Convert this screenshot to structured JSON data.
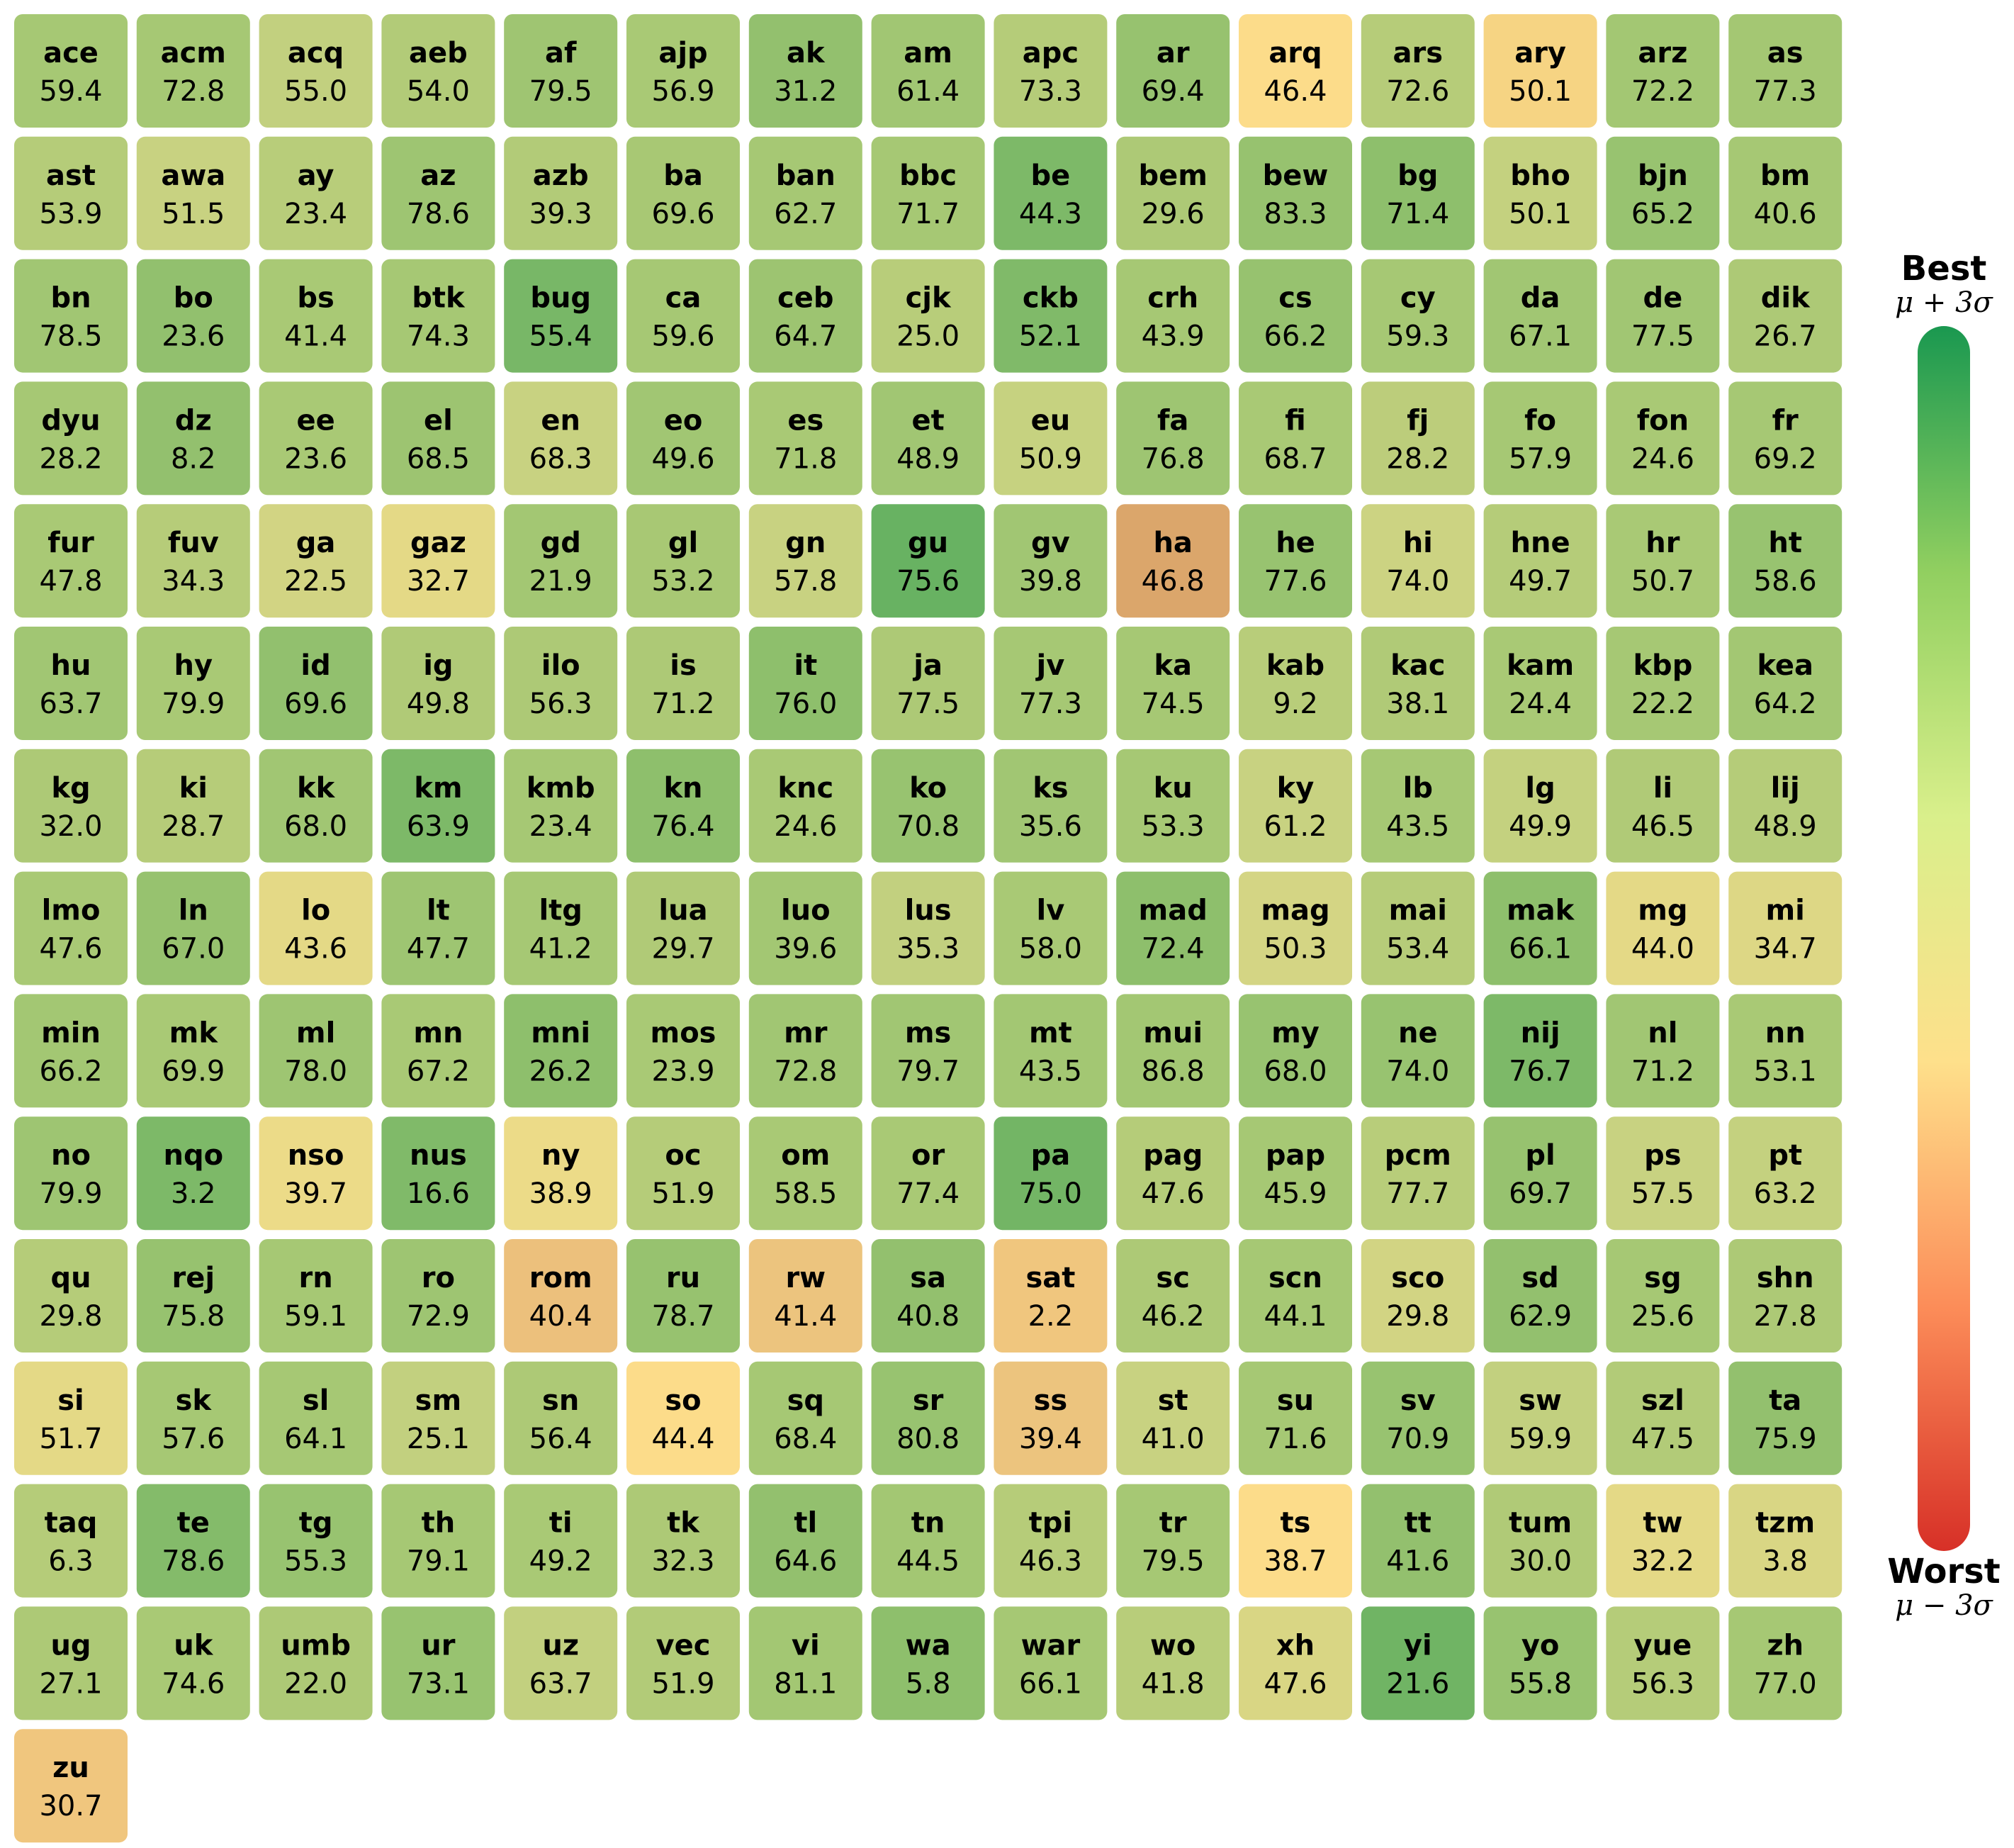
{
  "chart_data": {
    "type": "heatmap",
    "legend": {
      "top_label": "Best",
      "top_sub": "μ + 3σ",
      "bottom_label": "Worst",
      "bottom_sub": "μ − 3σ",
      "placement": "right",
      "gradient_colors": [
        "#1a9850",
        "#91cf60",
        "#d9ef8b",
        "#fee08b",
        "#fc8d59",
        "#d73027"
      ]
    },
    "columns": 15,
    "cells": [
      {
        "code": "ace",
        "value": 59.4,
        "color": "#a6c874"
      },
      {
        "code": "acm",
        "value": 72.8,
        "color": "#a6c874"
      },
      {
        "code": "acq",
        "value": 55.0,
        "color": "#c2d07f"
      },
      {
        "code": "aeb",
        "value": 54.0,
        "color": "#b2cb78"
      },
      {
        "code": "af",
        "value": 79.5,
        "color": "#9fc572"
      },
      {
        "code": "ajp",
        "value": 56.9,
        "color": "#a9c975"
      },
      {
        "code": "ak",
        "value": 31.2,
        "color": "#93c06e"
      },
      {
        "code": "am",
        "value": 61.4,
        "color": "#a1c673"
      },
      {
        "code": "apc",
        "value": 73.3,
        "color": "#b5cc79"
      },
      {
        "code": "ar",
        "value": 69.4,
        "color": "#97c26f"
      },
      {
        "code": "arq",
        "value": 46.4,
        "color": "#fcdc8a"
      },
      {
        "code": "ars",
        "value": 72.6,
        "color": "#b6cc79"
      },
      {
        "code": "ary",
        "value": 50.1,
        "color": "#f6d483"
      },
      {
        "code": "arz",
        "value": 72.2,
        "color": "#a3c773"
      },
      {
        "code": "as",
        "value": 77.3,
        "color": "#a4c773"
      },
      {
        "code": "ast",
        "value": 53.9,
        "color": "#b5cc79"
      },
      {
        "code": "awa",
        "value": 51.5,
        "color": "#c8d281"
      },
      {
        "code": "ay",
        "value": 23.4,
        "color": "#b8cd7a"
      },
      {
        "code": "az",
        "value": 78.6,
        "color": "#9ec572"
      },
      {
        "code": "azb",
        "value": 39.3,
        "color": "#b2cb78"
      },
      {
        "code": "ba",
        "value": 69.6,
        "color": "#a8c874"
      },
      {
        "code": "ban",
        "value": 62.7,
        "color": "#a6c874"
      },
      {
        "code": "bbc",
        "value": 71.7,
        "color": "#a6c874"
      },
      {
        "code": "be",
        "value": 44.3,
        "color": "#7db968"
      },
      {
        "code": "bem",
        "value": 29.6,
        "color": "#adc976"
      },
      {
        "code": "bew",
        "value": 83.3,
        "color": "#97c26f"
      },
      {
        "code": "bg",
        "value": 71.4,
        "color": "#8ebf6c"
      },
      {
        "code": "bho",
        "value": 50.1,
        "color": "#c4d17f"
      },
      {
        "code": "bjn",
        "value": 65.2,
        "color": "#98c370"
      },
      {
        "code": "bm",
        "value": 40.6,
        "color": "#a6c874"
      },
      {
        "code": "bn",
        "value": 78.5,
        "color": "#a1c673"
      },
      {
        "code": "bo",
        "value": 23.6,
        "color": "#92c06e"
      },
      {
        "code": "bs",
        "value": 41.4,
        "color": "#a9c975"
      },
      {
        "code": "btk",
        "value": 74.3,
        "color": "#a6c874"
      },
      {
        "code": "bug",
        "value": 55.4,
        "color": "#78b767"
      },
      {
        "code": "ca",
        "value": 59.6,
        "color": "#a6c874"
      },
      {
        "code": "ceb",
        "value": 64.7,
        "color": "#9dc471"
      },
      {
        "code": "cjk",
        "value": 25.0,
        "color": "#b8cd7a"
      },
      {
        "code": "ckb",
        "value": 52.1,
        "color": "#80ba69"
      },
      {
        "code": "crh",
        "value": 43.9,
        "color": "#a6c874"
      },
      {
        "code": "cs",
        "value": 66.2,
        "color": "#97c26f"
      },
      {
        "code": "cy",
        "value": 59.3,
        "color": "#a6c874"
      },
      {
        "code": "da",
        "value": 67.1,
        "color": "#a1c673"
      },
      {
        "code": "de",
        "value": 77.5,
        "color": "#a1c673"
      },
      {
        "code": "dik",
        "value": 26.7,
        "color": "#adc976"
      },
      {
        "code": "dyu",
        "value": 28.2,
        "color": "#a6c874"
      },
      {
        "code": "dz",
        "value": 8.2,
        "color": "#93c06e"
      },
      {
        "code": "ee",
        "value": 23.6,
        "color": "#a9c975"
      },
      {
        "code": "el",
        "value": 68.5,
        "color": "#9dc471"
      },
      {
        "code": "en",
        "value": 68.3,
        "color": "#c8d281"
      },
      {
        "code": "eo",
        "value": 49.6,
        "color": "#a1c673"
      },
      {
        "code": "es",
        "value": 71.8,
        "color": "#a9c975"
      },
      {
        "code": "et",
        "value": 48.9,
        "color": "#a1c673"
      },
      {
        "code": "eu",
        "value": 50.9,
        "color": "#c6d280"
      },
      {
        "code": "fa",
        "value": 76.8,
        "color": "#9ec572"
      },
      {
        "code": "fi",
        "value": 68.7,
        "color": "#a9c975"
      },
      {
        "code": "fj",
        "value": 28.2,
        "color": "#bccd7b"
      },
      {
        "code": "fo",
        "value": 57.9,
        "color": "#a6c874"
      },
      {
        "code": "fon",
        "value": 24.6,
        "color": "#a9c975"
      },
      {
        "code": "fr",
        "value": 69.2,
        "color": "#a6c874"
      },
      {
        "code": "fur",
        "value": 47.8,
        "color": "#a9c975"
      },
      {
        "code": "fuv",
        "value": 34.3,
        "color": "#b6cc79"
      },
      {
        "code": "ga",
        "value": 22.5,
        "color": "#d2d483"
      },
      {
        "code": "gaz",
        "value": 32.7,
        "color": "#e4d986"
      },
      {
        "code": "gd",
        "value": 21.9,
        "color": "#a3c773"
      },
      {
        "code": "gl",
        "value": 53.2,
        "color": "#a8c874"
      },
      {
        "code": "gn",
        "value": 57.8,
        "color": "#c8d281"
      },
      {
        "code": "gu",
        "value": 75.6,
        "color": "#68b262"
      },
      {
        "code": "gv",
        "value": 39.8,
        "color": "#a1c673"
      },
      {
        "code": "ha",
        "value": 46.8,
        "color": "#dba66b"
      },
      {
        "code": "he",
        "value": 77.6,
        "color": "#98c370"
      },
      {
        "code": "hi",
        "value": 74.0,
        "color": "#ccd382"
      },
      {
        "code": "hne",
        "value": 49.7,
        "color": "#b5cc79"
      },
      {
        "code": "hr",
        "value": 50.7,
        "color": "#a9c975"
      },
      {
        "code": "ht",
        "value": 58.6,
        "color": "#98c370"
      },
      {
        "code": "hu",
        "value": 63.7,
        "color": "#a1c673"
      },
      {
        "code": "hy",
        "value": 79.9,
        "color": "#a9c975"
      },
      {
        "code": "id",
        "value": 69.6,
        "color": "#92c06e"
      },
      {
        "code": "ig",
        "value": 49.8,
        "color": "#b0ca77"
      },
      {
        "code": "ilo",
        "value": 56.3,
        "color": "#adc976"
      },
      {
        "code": "is",
        "value": 71.2,
        "color": "#adc976"
      },
      {
        "code": "it",
        "value": 76.0,
        "color": "#8ebf6c"
      },
      {
        "code": "ja",
        "value": 77.5,
        "color": "#adc976"
      },
      {
        "code": "jv",
        "value": 77.3,
        "color": "#a6c874"
      },
      {
        "code": "ka",
        "value": 74.5,
        "color": "#a6c874"
      },
      {
        "code": "kab",
        "value": 9.2,
        "color": "#b8cd7a"
      },
      {
        "code": "kac",
        "value": 38.1,
        "color": "#b0ca77"
      },
      {
        "code": "kam",
        "value": 24.4,
        "color": "#a9c975"
      },
      {
        "code": "kbp",
        "value": 22.2,
        "color": "#a6c874"
      },
      {
        "code": "kea",
        "value": 64.2,
        "color": "#a3c773"
      },
      {
        "code": "kg",
        "value": 32.0,
        "color": "#adc976"
      },
      {
        "code": "ki",
        "value": 28.7,
        "color": "#b6cc79"
      },
      {
        "code": "kk",
        "value": 68.0,
        "color": "#a1c673"
      },
      {
        "code": "km",
        "value": 63.9,
        "color": "#7db968"
      },
      {
        "code": "kmb",
        "value": 23.4,
        "color": "#a6c874"
      },
      {
        "code": "kn",
        "value": 76.4,
        "color": "#8ebf6c"
      },
      {
        "code": "knc",
        "value": 24.6,
        "color": "#a9c975"
      },
      {
        "code": "ko",
        "value": 70.8,
        "color": "#98c370"
      },
      {
        "code": "ks",
        "value": 35.6,
        "color": "#a1c673"
      },
      {
        "code": "ku",
        "value": 53.3,
        "color": "#a6c874"
      },
      {
        "code": "ky",
        "value": 61.2,
        "color": "#c8d281"
      },
      {
        "code": "lb",
        "value": 43.5,
        "color": "#a6c874"
      },
      {
        "code": "lg",
        "value": 49.9,
        "color": "#c4d17f"
      },
      {
        "code": "li",
        "value": 46.5,
        "color": "#b0ca77"
      },
      {
        "code": "lij",
        "value": 48.9,
        "color": "#b5cc79"
      },
      {
        "code": "lmo",
        "value": 47.6,
        "color": "#a9c975"
      },
      {
        "code": "ln",
        "value": 67.0,
        "color": "#97c26f"
      },
      {
        "code": "lo",
        "value": 43.6,
        "color": "#e4d986"
      },
      {
        "code": "lt",
        "value": 47.7,
        "color": "#9ec572"
      },
      {
        "code": "ltg",
        "value": 41.2,
        "color": "#a6c874"
      },
      {
        "code": "lua",
        "value": 29.7,
        "color": "#b0ca77"
      },
      {
        "code": "luo",
        "value": 39.6,
        "color": "#a3c773"
      },
      {
        "code": "lus",
        "value": 35.3,
        "color": "#c2d07f"
      },
      {
        "code": "lv",
        "value": 58.0,
        "color": "#a9c975"
      },
      {
        "code": "mad",
        "value": 72.4,
        "color": "#8ebf6c"
      },
      {
        "code": "mag",
        "value": 50.3,
        "color": "#d4d584"
      },
      {
        "code": "mai",
        "value": 53.4,
        "color": "#b6cc79"
      },
      {
        "code": "mak",
        "value": 66.1,
        "color": "#8ebf6c"
      },
      {
        "code": "mg",
        "value": 44.0,
        "color": "#e4d986"
      },
      {
        "code": "mi",
        "value": 34.7,
        "color": "#ddd785"
      },
      {
        "code": "min",
        "value": 66.2,
        "color": "#a3c773"
      },
      {
        "code": "mk",
        "value": 69.9,
        "color": "#a9c975"
      },
      {
        "code": "ml",
        "value": 78.0,
        "color": "#9ec572"
      },
      {
        "code": "mn",
        "value": 67.2,
        "color": "#a9c975"
      },
      {
        "code": "mni",
        "value": 26.2,
        "color": "#8ebf6c"
      },
      {
        "code": "mos",
        "value": 23.9,
        "color": "#a9c975"
      },
      {
        "code": "mr",
        "value": 72.8,
        "color": "#a1c673"
      },
      {
        "code": "ms",
        "value": 79.7,
        "color": "#a1c673"
      },
      {
        "code": "mt",
        "value": 43.5,
        "color": "#a3c773"
      },
      {
        "code": "mui",
        "value": 86.8,
        "color": "#a3c773"
      },
      {
        "code": "my",
        "value": 68.0,
        "color": "#98c370"
      },
      {
        "code": "ne",
        "value": 74.0,
        "color": "#98c370"
      },
      {
        "code": "nij",
        "value": 76.7,
        "color": "#7db968"
      },
      {
        "code": "nl",
        "value": 71.2,
        "color": "#a1c673"
      },
      {
        "code": "nn",
        "value": 53.1,
        "color": "#a9c975"
      },
      {
        "code": "no",
        "value": 79.9,
        "color": "#9ec572"
      },
      {
        "code": "nqo",
        "value": 3.2,
        "color": "#7db968"
      },
      {
        "code": "nso",
        "value": 39.7,
        "color": "#ecdb88"
      },
      {
        "code": "nus",
        "value": 16.6,
        "color": "#80ba69"
      },
      {
        "code": "ny",
        "value": 38.9,
        "color": "#ecdb88"
      },
      {
        "code": "oc",
        "value": 51.9,
        "color": "#b5cc79"
      },
      {
        "code": "om",
        "value": 58.5,
        "color": "#a9c975"
      },
      {
        "code": "or",
        "value": 77.4,
        "color": "#a9c975"
      },
      {
        "code": "pa",
        "value": 75.0,
        "color": "#73b565"
      },
      {
        "code": "pag",
        "value": 47.6,
        "color": "#b5cc79"
      },
      {
        "code": "pap",
        "value": 45.9,
        "color": "#a6c874"
      },
      {
        "code": "pcm",
        "value": 77.7,
        "color": "#b8cd7a"
      },
      {
        "code": "pl",
        "value": 69.7,
        "color": "#97c26f"
      },
      {
        "code": "ps",
        "value": 57.5,
        "color": "#c8d281"
      },
      {
        "code": "pt",
        "value": 63.2,
        "color": "#c4d17f"
      },
      {
        "code": "qu",
        "value": 29.8,
        "color": "#b5cc79"
      },
      {
        "code": "rej",
        "value": 75.8,
        "color": "#97c26f"
      },
      {
        "code": "rn",
        "value": 59.1,
        "color": "#a6c874"
      },
      {
        "code": "ro",
        "value": 72.9,
        "color": "#9ec572"
      },
      {
        "code": "rom",
        "value": 40.4,
        "color": "#ecc07c"
      },
      {
        "code": "ru",
        "value": 78.7,
        "color": "#97c26f"
      },
      {
        "code": "rw",
        "value": 41.4,
        "color": "#ecc47e"
      },
      {
        "code": "sa",
        "value": 40.8,
        "color": "#93c06e"
      },
      {
        "code": "sat",
        "value": 2.2,
        "color": "#f0c67e"
      },
      {
        "code": "sc",
        "value": 46.2,
        "color": "#adc976"
      },
      {
        "code": "scn",
        "value": 44.1,
        "color": "#a6c874"
      },
      {
        "code": "sco",
        "value": 29.8,
        "color": "#d2d483"
      },
      {
        "code": "sd",
        "value": 62.9,
        "color": "#93c06e"
      },
      {
        "code": "sg",
        "value": 25.6,
        "color": "#a6c874"
      },
      {
        "code": "shn",
        "value": 27.8,
        "color": "#adc976"
      },
      {
        "code": "si",
        "value": 51.7,
        "color": "#e4d986"
      },
      {
        "code": "sk",
        "value": 57.6,
        "color": "#a6c874"
      },
      {
        "code": "sl",
        "value": 64.1,
        "color": "#a6c874"
      },
      {
        "code": "sm",
        "value": 25.1,
        "color": "#c2d07f"
      },
      {
        "code": "sn",
        "value": 56.4,
        "color": "#adc976"
      },
      {
        "code": "so",
        "value": 44.4,
        "color": "#fcdc8a"
      },
      {
        "code": "sq",
        "value": 68.4,
        "color": "#a6c874"
      },
      {
        "code": "sr",
        "value": 80.8,
        "color": "#98c370"
      },
      {
        "code": "ss",
        "value": 39.4,
        "color": "#ecc47e"
      },
      {
        "code": "st",
        "value": 41.0,
        "color": "#c8d281"
      },
      {
        "code": "su",
        "value": 71.6,
        "color": "#a6c874"
      },
      {
        "code": "sv",
        "value": 70.9,
        "color": "#98c370"
      },
      {
        "code": "sw",
        "value": 59.9,
        "color": "#c2d07f"
      },
      {
        "code": "szl",
        "value": 47.5,
        "color": "#b2cb78"
      },
      {
        "code": "ta",
        "value": 75.9,
        "color": "#93c06e"
      },
      {
        "code": "taq",
        "value": 6.3,
        "color": "#b5cc79"
      },
      {
        "code": "te",
        "value": 78.6,
        "color": "#84bb6a"
      },
      {
        "code": "tg",
        "value": 55.3,
        "color": "#98c370"
      },
      {
        "code": "th",
        "value": 79.1,
        "color": "#a6c874"
      },
      {
        "code": "ti",
        "value": 49.2,
        "color": "#a9c975"
      },
      {
        "code": "tk",
        "value": 32.3,
        "color": "#adc976"
      },
      {
        "code": "tl",
        "value": 64.6,
        "color": "#93c06e"
      },
      {
        "code": "tn",
        "value": 44.5,
        "color": "#a3c773"
      },
      {
        "code": "tpi",
        "value": 46.3,
        "color": "#b6cc79"
      },
      {
        "code": "tr",
        "value": 79.5,
        "color": "#a6c874"
      },
      {
        "code": "ts",
        "value": 38.7,
        "color": "#fcdc8a"
      },
      {
        "code": "tt",
        "value": 41.6,
        "color": "#93c06e"
      },
      {
        "code": "tum",
        "value": 30.0,
        "color": "#b0ca77"
      },
      {
        "code": "tw",
        "value": 32.2,
        "color": "#e4d986"
      },
      {
        "code": "tzm",
        "value": 3.8,
        "color": "#d9d684"
      },
      {
        "code": "ug",
        "value": 27.1,
        "color": "#adc976"
      },
      {
        "code": "uk",
        "value": 74.6,
        "color": "#a9c975"
      },
      {
        "code": "umb",
        "value": 22.0,
        "color": "#adc976"
      },
      {
        "code": "ur",
        "value": 73.1,
        "color": "#98c370"
      },
      {
        "code": "uz",
        "value": 63.7,
        "color": "#c2d07f"
      },
      {
        "code": "vec",
        "value": 51.9,
        "color": "#b2cb78"
      },
      {
        "code": "vi",
        "value": 81.1,
        "color": "#a3c773"
      },
      {
        "code": "wa",
        "value": 5.8,
        "color": "#8ebf6c"
      },
      {
        "code": "war",
        "value": 66.1,
        "color": "#a6c874"
      },
      {
        "code": "wo",
        "value": 41.8,
        "color": "#b8cd7a"
      },
      {
        "code": "xh",
        "value": 47.6,
        "color": "#d9d684"
      },
      {
        "code": "yi",
        "value": 21.6,
        "color": "#70b464"
      },
      {
        "code": "yo",
        "value": 55.8,
        "color": "#98c370"
      },
      {
        "code": "yue",
        "value": 56.3,
        "color": "#b5cc79"
      },
      {
        "code": "zh",
        "value": 77.0,
        "color": "#a6c874"
      },
      {
        "code": "zu",
        "value": 30.7,
        "color": "#f0c67e"
      }
    ]
  }
}
